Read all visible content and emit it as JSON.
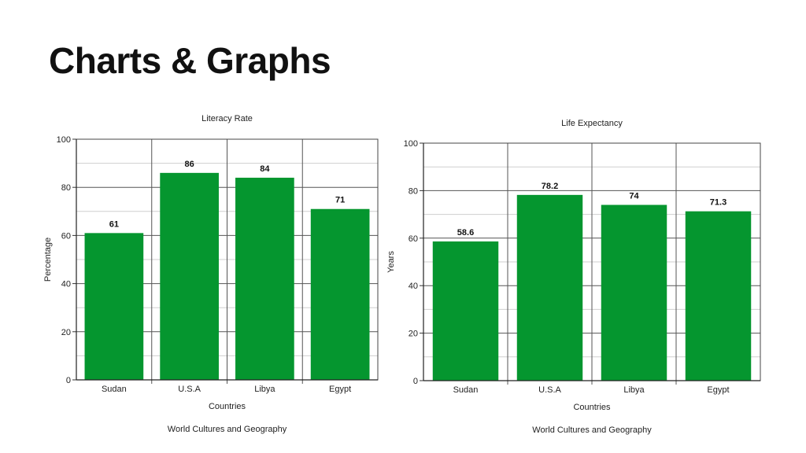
{
  "slide": {
    "title": "Charts & Graphs"
  },
  "chart_data": [
    {
      "type": "bar",
      "title": "Literacy Rate",
      "xlabel": "Countries",
      "ylabel": "Percentage",
      "footer": "World Cultures and Geography",
      "categories": [
        "Sudan",
        "U.S.A",
        "Libya",
        "Egypt"
      ],
      "values": [
        61,
        86,
        84,
        71
      ],
      "data_labels": [
        "61",
        "86",
        "84",
        "71"
      ],
      "ylim": [
        0,
        100
      ],
      "yticks": [
        0,
        20,
        40,
        60,
        80,
        100
      ],
      "grid": true,
      "bar_color": "#05962f"
    },
    {
      "type": "bar",
      "title": "Life Expectancy",
      "xlabel": "Countries",
      "ylabel": "Years",
      "footer": "World Cultures and Geography",
      "categories": [
        "Sudan",
        "U.S.A",
        "Libya",
        "Egypt"
      ],
      "values": [
        58.6,
        78.2,
        74,
        71.3
      ],
      "data_labels": [
        "58.6",
        "78.2",
        "74",
        "71.3"
      ],
      "ylim": [
        0,
        100
      ],
      "yticks": [
        0,
        20,
        40,
        60,
        80,
        100
      ],
      "grid": true,
      "bar_color": "#05962f"
    }
  ]
}
